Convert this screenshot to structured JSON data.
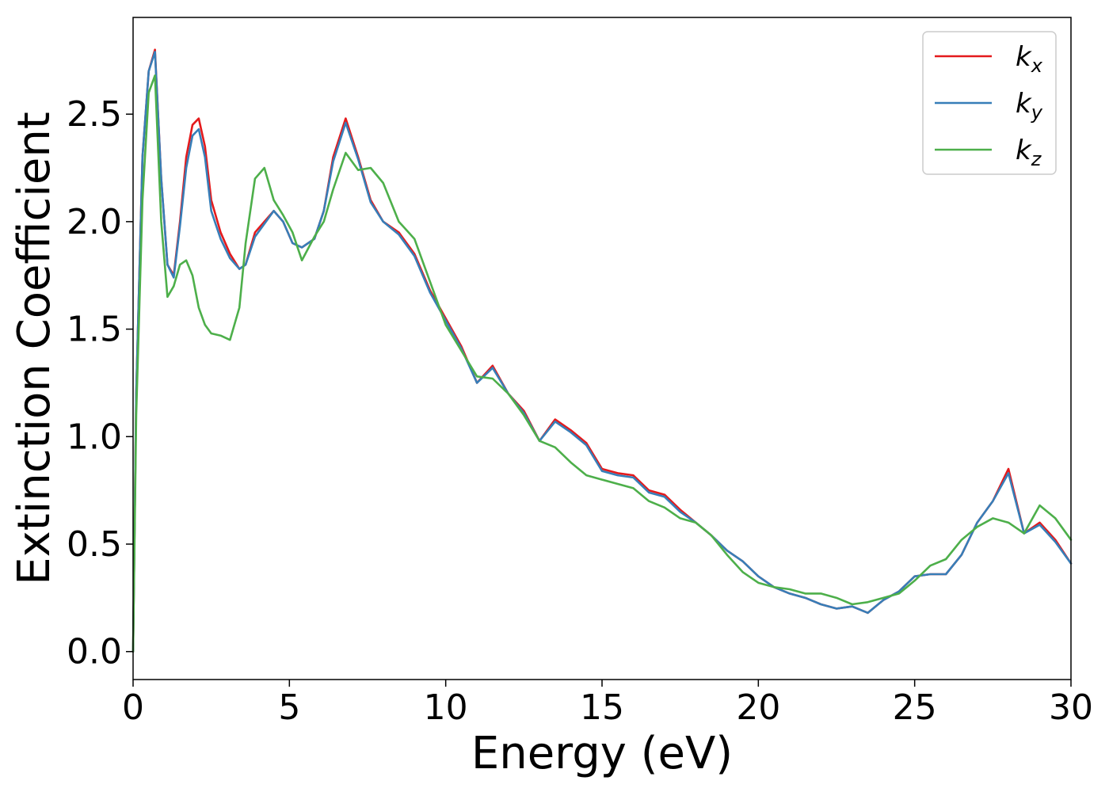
{
  "chart_data": {
    "type": "line",
    "xlabel": "Energy (eV)",
    "ylabel": "Extinction Coefficient",
    "xlim": [
      0,
      30
    ],
    "ylim": [
      -0.13,
      2.95
    ],
    "xticks": [
      0,
      5,
      10,
      15,
      20,
      25,
      30
    ],
    "xtick_labels": [
      "0",
      "5",
      "10",
      "15",
      "20",
      "25",
      "30"
    ],
    "yticks": [
      0.0,
      0.5,
      1.0,
      1.5,
      2.0,
      2.5
    ],
    "ytick_labels": [
      "0.0",
      "0.5",
      "1.0",
      "1.5",
      "2.0",
      "2.5"
    ],
    "grid": false,
    "legend_position": "top-right",
    "series": [
      {
        "name": "kx",
        "base": "k",
        "sub": "x",
        "color": "#e41a1c",
        "x": [
          0,
          0.1,
          0.3,
          0.5,
          0.7,
          0.9,
          1.1,
          1.3,
          1.5,
          1.7,
          1.9,
          2.1,
          2.3,
          2.5,
          2.8,
          3.1,
          3.4,
          3.6,
          3.9,
          4.2,
          4.5,
          4.8,
          5.1,
          5.4,
          5.8,
          6.1,
          6.4,
          6.8,
          7.2,
          7.6,
          8.0,
          8.5,
          9.0,
          9.5,
          10.0,
          10.5,
          11.0,
          11.5,
          12.0,
          12.5,
          13.0,
          13.5,
          14.0,
          14.5,
          15.0,
          15.5,
          16.0,
          16.5,
          17.0,
          17.5,
          18.0,
          18.5,
          19.0,
          19.5,
          20.0,
          20.5,
          21.0,
          21.5,
          22.0,
          22.5,
          23.0,
          23.5,
          24.0,
          24.5,
          25.0,
          25.5,
          26.0,
          26.5,
          27.0,
          27.5,
          28.0,
          28.5,
          29.0,
          29.5,
          30.0
        ],
        "values": [
          0.0,
          1.2,
          2.3,
          2.7,
          2.8,
          2.2,
          1.8,
          1.75,
          2.0,
          2.3,
          2.45,
          2.48,
          2.35,
          2.1,
          1.95,
          1.85,
          1.78,
          1.8,
          1.95,
          2.0,
          2.05,
          2.0,
          1.9,
          1.88,
          1.92,
          2.05,
          2.3,
          2.48,
          2.3,
          2.1,
          2.0,
          1.95,
          1.85,
          1.68,
          1.55,
          1.42,
          1.25,
          1.33,
          1.2,
          1.12,
          0.98,
          1.08,
          1.03,
          0.97,
          0.85,
          0.83,
          0.82,
          0.75,
          0.73,
          0.66,
          0.6,
          0.54,
          0.47,
          0.42,
          0.35,
          0.3,
          0.27,
          0.25,
          0.22,
          0.2,
          0.21,
          0.18,
          0.24,
          0.28,
          0.35,
          0.36,
          0.36,
          0.45,
          0.6,
          0.7,
          0.85,
          0.55,
          0.6,
          0.52,
          0.41
        ]
      },
      {
        "name": "ky",
        "base": "k",
        "sub": "y",
        "color": "#377eb8",
        "x": [
          0,
          0.1,
          0.3,
          0.5,
          0.7,
          0.9,
          1.1,
          1.3,
          1.5,
          1.7,
          1.9,
          2.1,
          2.3,
          2.5,
          2.8,
          3.1,
          3.4,
          3.6,
          3.9,
          4.2,
          4.5,
          4.8,
          5.1,
          5.4,
          5.8,
          6.1,
          6.4,
          6.8,
          7.2,
          7.6,
          8.0,
          8.5,
          9.0,
          9.5,
          10.0,
          10.5,
          11.0,
          11.5,
          12.0,
          12.5,
          13.0,
          13.5,
          14.0,
          14.5,
          15.0,
          15.5,
          16.0,
          16.5,
          17.0,
          17.5,
          18.0,
          18.5,
          19.0,
          19.5,
          20.0,
          20.5,
          21.0,
          21.5,
          22.0,
          22.5,
          23.0,
          23.5,
          24.0,
          24.5,
          25.0,
          25.5,
          26.0,
          26.5,
          27.0,
          27.5,
          28.0,
          28.5,
          29.0,
          29.5,
          30.0
        ],
        "values": [
          0.0,
          1.2,
          2.3,
          2.7,
          2.79,
          2.2,
          1.8,
          1.74,
          1.98,
          2.25,
          2.4,
          2.43,
          2.3,
          2.05,
          1.92,
          1.83,
          1.78,
          1.8,
          1.93,
          1.99,
          2.05,
          2.0,
          1.9,
          1.88,
          1.92,
          2.05,
          2.28,
          2.46,
          2.29,
          2.09,
          2.0,
          1.94,
          1.84,
          1.67,
          1.54,
          1.41,
          1.25,
          1.32,
          1.2,
          1.11,
          0.98,
          1.07,
          1.02,
          0.96,
          0.84,
          0.82,
          0.81,
          0.74,
          0.72,
          0.65,
          0.6,
          0.54,
          0.47,
          0.42,
          0.35,
          0.3,
          0.27,
          0.25,
          0.22,
          0.2,
          0.21,
          0.18,
          0.24,
          0.28,
          0.35,
          0.36,
          0.36,
          0.45,
          0.6,
          0.7,
          0.83,
          0.55,
          0.59,
          0.51,
          0.41
        ]
      },
      {
        "name": "kz",
        "base": "k",
        "sub": "z",
        "color": "#4daf4a",
        "x": [
          0,
          0.1,
          0.3,
          0.5,
          0.7,
          0.9,
          1.1,
          1.3,
          1.5,
          1.7,
          1.9,
          2.1,
          2.3,
          2.5,
          2.8,
          3.1,
          3.4,
          3.6,
          3.9,
          4.2,
          4.5,
          4.8,
          5.1,
          5.4,
          5.8,
          6.1,
          6.4,
          6.8,
          7.2,
          7.6,
          8.0,
          8.5,
          9.0,
          9.5,
          10.0,
          10.5,
          11.0,
          11.5,
          12.0,
          12.5,
          13.0,
          13.5,
          14.0,
          14.5,
          15.0,
          15.5,
          16.0,
          16.5,
          17.0,
          17.5,
          18.0,
          18.5,
          19.0,
          19.5,
          20.0,
          20.5,
          21.0,
          21.5,
          22.0,
          22.5,
          23.0,
          23.5,
          24.0,
          24.5,
          25.0,
          25.5,
          26.0,
          26.5,
          27.0,
          27.5,
          28.0,
          28.5,
          29.0,
          29.5,
          30.0
        ],
        "values": [
          0.0,
          1.1,
          2.1,
          2.6,
          2.68,
          2.0,
          1.65,
          1.7,
          1.8,
          1.82,
          1.75,
          1.6,
          1.52,
          1.48,
          1.47,
          1.45,
          1.6,
          1.9,
          2.2,
          2.25,
          2.1,
          2.03,
          1.95,
          1.82,
          1.93,
          2.0,
          2.15,
          2.32,
          2.24,
          2.25,
          2.18,
          2.0,
          1.92,
          1.72,
          1.52,
          1.4,
          1.28,
          1.27,
          1.2,
          1.1,
          0.98,
          0.95,
          0.88,
          0.82,
          0.8,
          0.78,
          0.76,
          0.7,
          0.67,
          0.62,
          0.6,
          0.54,
          0.45,
          0.37,
          0.32,
          0.3,
          0.29,
          0.27,
          0.27,
          0.25,
          0.22,
          0.23,
          0.25,
          0.27,
          0.33,
          0.4,
          0.43,
          0.52,
          0.58,
          0.62,
          0.6,
          0.55,
          0.68,
          0.62,
          0.52
        ]
      }
    ]
  }
}
